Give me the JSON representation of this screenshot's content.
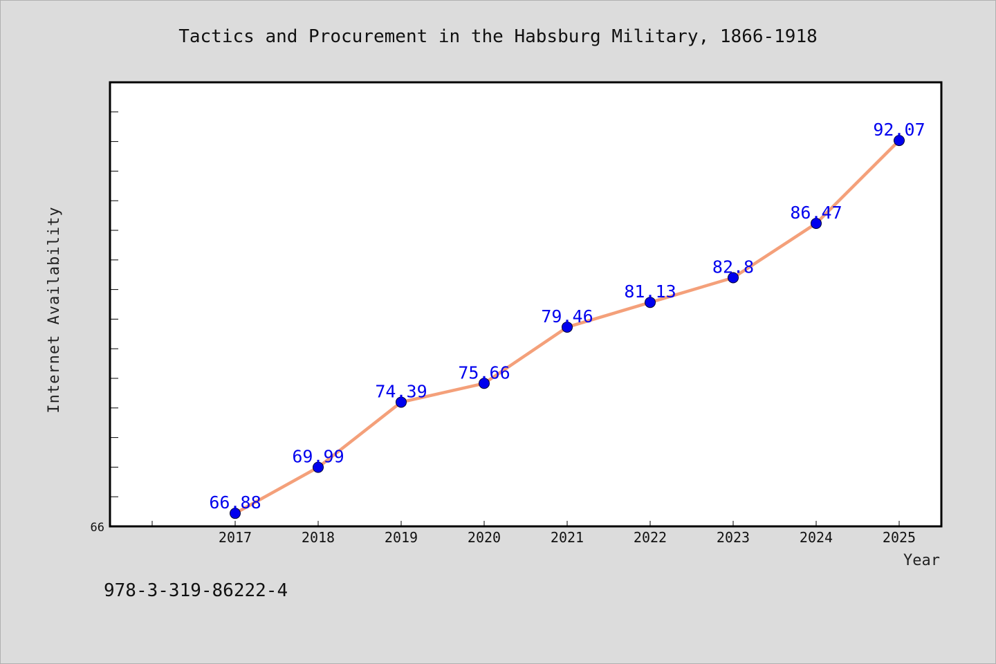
{
  "chart_data": {
    "type": "line",
    "title": "Tactics and Procurement in the Habsburg Military, 1866-1918",
    "xlabel": "Year",
    "ylabel": "Internet Availability",
    "categories": [
      "2017",
      "2018",
      "2019",
      "2020",
      "2021",
      "2022",
      "2023",
      "2024",
      "2025"
    ],
    "series": [
      {
        "values": [
          66.88,
          69.99,
          74.39,
          75.66,
          79.46,
          81.13,
          82.8,
          86.47,
          92.07
        ],
        "labels": [
          "66.88",
          "69.99",
          "74.39",
          "75.66",
          "79.46",
          "81.13",
          "82.8",
          "86.47",
          "92.07"
        ],
        "line_color": "#f4a07a",
        "marker_color": "#0000ee"
      }
    ],
    "ylim": [
      66,
      96
    ],
    "y_tick_labels": [
      "66"
    ],
    "grid": false,
    "legend": "none"
  },
  "footnote": "978-3-319-86222-4",
  "colors": {
    "background": "#dcdcdc",
    "plot_background": "#ffffff",
    "axis": "#000000"
  }
}
